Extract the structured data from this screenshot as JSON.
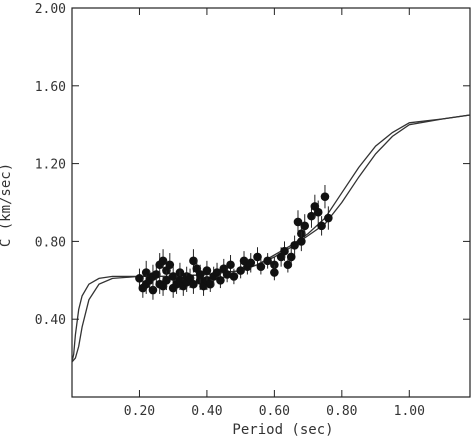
{
  "chart_data": {
    "type": "scatter",
    "xlabel": "Period (sec)",
    "ylabel": "C (km/sec)",
    "xlim": [
      0.0,
      1.18
    ],
    "ylim": [
      0.0,
      2.0
    ],
    "xticks": [
      0.2,
      0.4,
      0.6,
      0.8,
      1.0
    ],
    "xtick_labels": [
      "0.20",
      "0.40",
      "0.60",
      "0.80",
      "1.00"
    ],
    "yticks": [
      0.4,
      0.8,
      1.2,
      1.6,
      2.0
    ],
    "ytick_labels": [
      "0.40",
      "0.80",
      "1.20",
      "1.60",
      "2.00"
    ],
    "grid": false,
    "series": [
      {
        "kind": "line",
        "x": [
          0.0,
          0.005,
          0.01,
          0.02,
          0.03,
          0.05,
          0.08,
          0.12,
          0.2,
          0.3,
          0.4,
          0.5,
          0.55,
          0.6,
          0.65,
          0.7,
          0.75,
          0.8,
          0.85,
          0.9,
          0.95,
          1.0,
          1.1,
          1.18
        ],
        "y": [
          0.18,
          0.22,
          0.32,
          0.45,
          0.52,
          0.58,
          0.61,
          0.62,
          0.62,
          0.62,
          0.63,
          0.65,
          0.68,
          0.73,
          0.78,
          0.84,
          0.92,
          1.05,
          1.18,
          1.29,
          1.36,
          1.41,
          1.43,
          1.45
        ]
      },
      {
        "kind": "line",
        "x": [
          0.0,
          0.01,
          0.02,
          0.03,
          0.05,
          0.08,
          0.12,
          0.2,
          0.3,
          0.4,
          0.5,
          0.55,
          0.6,
          0.65,
          0.7,
          0.75,
          0.8,
          0.85,
          0.9,
          0.95,
          1.0,
          1.1,
          1.18
        ],
        "y": [
          0.18,
          0.2,
          0.26,
          0.36,
          0.5,
          0.58,
          0.61,
          0.62,
          0.62,
          0.63,
          0.65,
          0.68,
          0.72,
          0.77,
          0.83,
          0.89,
          1.0,
          1.13,
          1.25,
          1.34,
          1.4,
          1.43,
          1.45
        ]
      },
      {
        "kind": "points",
        "x": [
          0.2,
          0.21,
          0.22,
          0.22,
          0.23,
          0.24,
          0.24,
          0.25,
          0.26,
          0.26,
          0.27,
          0.27,
          0.28,
          0.28,
          0.29,
          0.3,
          0.3,
          0.31,
          0.32,
          0.32,
          0.33,
          0.34,
          0.34,
          0.35,
          0.36,
          0.36,
          0.37,
          0.38,
          0.38,
          0.39,
          0.4,
          0.4,
          0.41,
          0.42,
          0.43,
          0.44,
          0.45,
          0.46,
          0.47,
          0.48,
          0.5,
          0.51,
          0.52,
          0.53,
          0.55,
          0.56,
          0.58,
          0.6,
          0.6,
          0.62,
          0.63,
          0.64,
          0.65,
          0.66,
          0.67,
          0.68,
          0.68,
          0.69,
          0.71,
          0.72,
          0.73,
          0.74,
          0.75,
          0.76
        ],
        "y": [
          0.61,
          0.56,
          0.64,
          0.58,
          0.6,
          0.55,
          0.62,
          0.63,
          0.68,
          0.58,
          0.7,
          0.57,
          0.65,
          0.6,
          0.68,
          0.56,
          0.62,
          0.58,
          0.64,
          0.6,
          0.57,
          0.62,
          0.59,
          0.61,
          0.7,
          0.58,
          0.66,
          0.6,
          0.63,
          0.57,
          0.6,
          0.65,
          0.58,
          0.62,
          0.64,
          0.6,
          0.66,
          0.63,
          0.68,
          0.62,
          0.65,
          0.7,
          0.67,
          0.69,
          0.72,
          0.67,
          0.7,
          0.68,
          0.64,
          0.72,
          0.75,
          0.68,
          0.72,
          0.78,
          0.9,
          0.84,
          0.8,
          0.88,
          0.93,
          0.98,
          0.95,
          0.88,
          1.03,
          0.92
        ],
        "err": [
          0.05,
          0.05,
          0.06,
          0.05,
          0.05,
          0.05,
          0.06,
          0.05,
          0.06,
          0.05,
          0.06,
          0.05,
          0.05,
          0.05,
          0.06,
          0.05,
          0.05,
          0.05,
          0.05,
          0.05,
          0.05,
          0.05,
          0.05,
          0.05,
          0.06,
          0.05,
          0.05,
          0.05,
          0.05,
          0.05,
          0.05,
          0.05,
          0.04,
          0.05,
          0.05,
          0.04,
          0.05,
          0.04,
          0.05,
          0.04,
          0.04,
          0.05,
          0.04,
          0.05,
          0.05,
          0.04,
          0.04,
          0.04,
          0.04,
          0.05,
          0.05,
          0.04,
          0.05,
          0.05,
          0.06,
          0.05,
          0.05,
          0.06,
          0.06,
          0.06,
          0.06,
          0.05,
          0.06,
          0.06
        ]
      }
    ]
  }
}
